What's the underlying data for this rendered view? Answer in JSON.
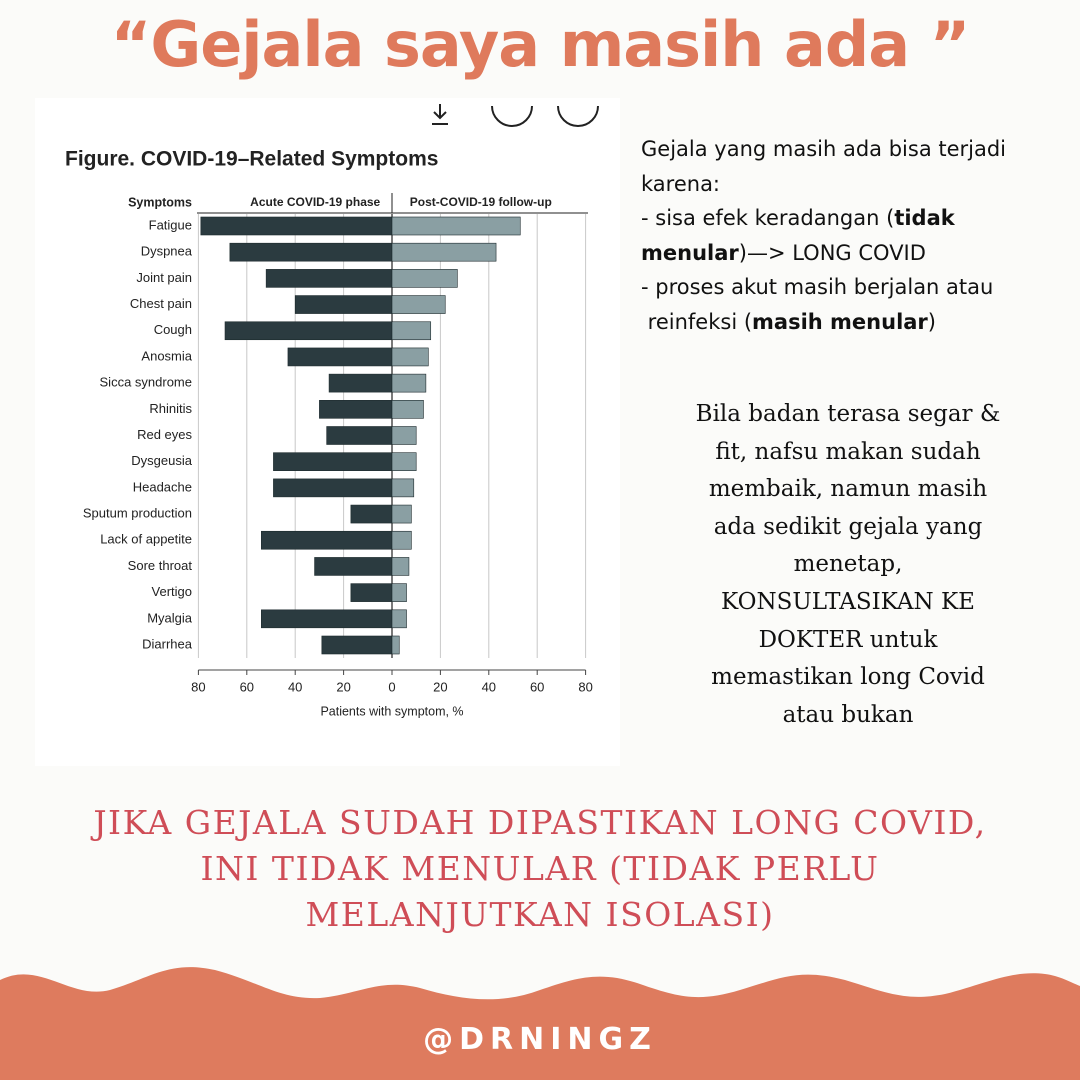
{
  "header": {
    "title": "“Gejala saya masih ada ”"
  },
  "chart_data": {
    "type": "diverging-bar",
    "title": "Figure.  COVID-19–Related Symptoms",
    "category_label": "Symptoms",
    "xlabel": "Patients with symptom, %",
    "categories": [
      "Fatigue",
      "Dyspnea",
      "Joint pain",
      "Chest pain",
      "Cough",
      "Anosmia",
      "Sicca syndrome",
      "Rhinitis",
      "Red eyes",
      "Dysgeusia",
      "Headache",
      "Sputum production",
      "Lack of appetite",
      "Sore throat",
      "Vertigo",
      "Myalgia",
      "Diarrhea"
    ],
    "series": [
      {
        "name": "Acute COVID-19 phase",
        "color": "#2b3b40",
        "side": "left",
        "values": [
          79,
          67,
          52,
          40,
          69,
          43,
          26,
          30,
          27,
          49,
          49,
          17,
          54,
          32,
          17,
          54,
          29
        ]
      },
      {
        "name": "Post-COVID-19 follow-up",
        "color": "#8a9fa3",
        "side": "right",
        "values": [
          53,
          43,
          27,
          22,
          16,
          15,
          14,
          13,
          10,
          10,
          9,
          8,
          8,
          7,
          6,
          6,
          3
        ]
      }
    ],
    "xlim": [
      0,
      80
    ],
    "xticks": [
      0,
      20,
      40,
      60,
      80
    ],
    "mirrored_axis": true,
    "grid": true
  },
  "explanation": [
    [
      {
        "text": "Gejala yang masih ada bisa terjadi",
        "bold": false
      }
    ],
    [
      {
        "text": "karena:",
        "bold": false
      }
    ],
    [
      {
        "text": "- sisa efek keradangan (",
        "bold": false
      },
      {
        "text": "tidak",
        "bold": true
      }
    ],
    [
      {
        "text": "menular",
        "bold": true
      },
      {
        "text": ")—> LONG COVID",
        "bold": false
      }
    ],
    [
      {
        "text": "- proses akut masih berjalan atau",
        "bold": false
      }
    ],
    [
      {
        "text": " reinfeksi (",
        "bold": false
      },
      {
        "text": "masih menular",
        "bold": true
      },
      {
        "text": ")",
        "bold": false
      }
    ]
  ],
  "advice": [
    "Bila badan terasa segar &",
    "fit, nafsu makan sudah",
    "membaik, namun masih",
    "ada sedikit gejala yang",
    "menetap,",
    "KONSULTASIKAN KE",
    "DOKTER untuk",
    "memastikan long Covid",
    "atau bukan"
  ],
  "conclusion": [
    "JIKA GEJALA SUDAH DIPASTIKAN LONG COVID,",
    "INI TIDAK MENULAR (TIDAK PERLU",
    "MELANJUTKAN ISOLASI)"
  ],
  "footer": {
    "handle": "@DRNINGZ"
  }
}
